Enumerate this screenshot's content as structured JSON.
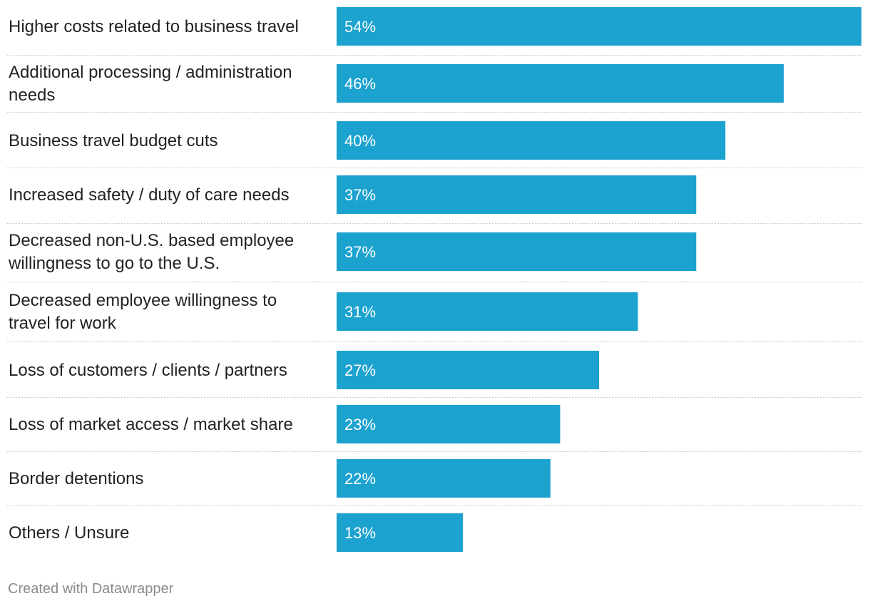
{
  "chart_data": {
    "type": "bar",
    "orientation": "horizontal",
    "categories": [
      [
        "Higher costs related to business travel"
      ],
      [
        "Additional processing / administration",
        "needs"
      ],
      [
        "Business travel budget cuts"
      ],
      [
        "Increased safety / duty of care needs"
      ],
      [
        "Decreased non-U.S. based employee",
        "willingness to go to the U.S."
      ],
      [
        "Decreased employee willingness to",
        "travel for work"
      ],
      [
        "Loss of customers / clients / partners"
      ],
      [
        "Loss of market access / market share"
      ],
      [
        "Border detentions"
      ],
      [
        "Others / Unsure"
      ]
    ],
    "values": [
      54,
      46,
      40,
      37,
      37,
      31,
      27,
      23,
      22,
      13
    ],
    "value_labels": [
      "54%",
      "46%",
      "40%",
      "37%",
      "37%",
      "31%",
      "27%",
      "23%",
      "22%",
      "13%"
    ],
    "unit": "%",
    "xlim": [
      0,
      54
    ],
    "bar_color": "#1ba2cf",
    "title": "",
    "xlabel": "",
    "ylabel": ""
  },
  "footer": {
    "credit": "Created with Datawrapper"
  }
}
